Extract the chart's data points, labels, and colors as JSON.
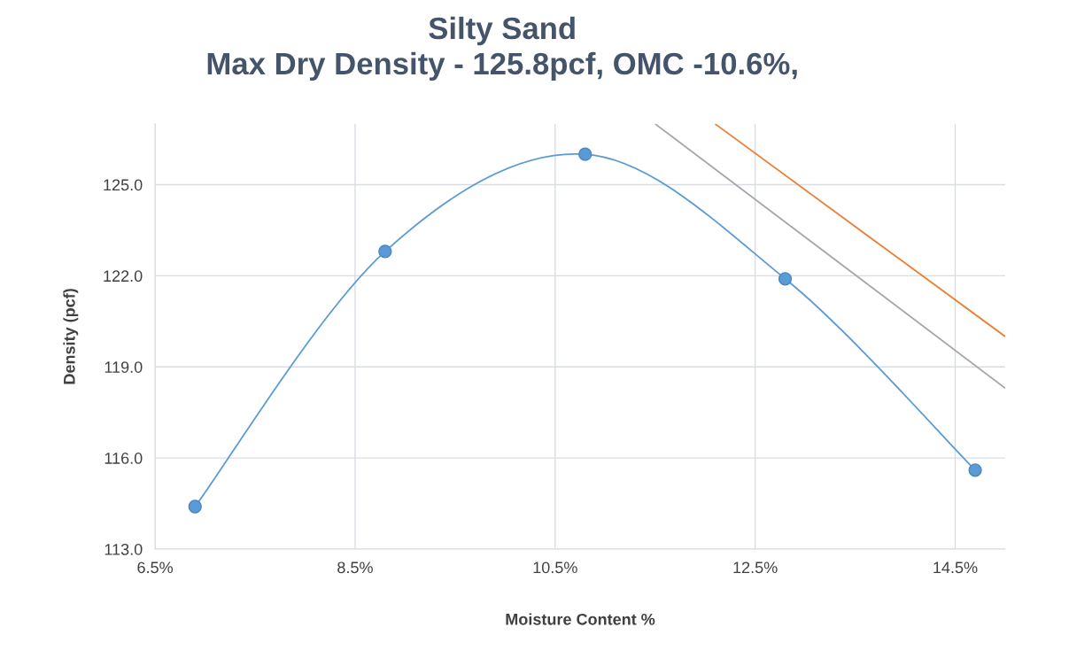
{
  "chart_data": {
    "type": "line",
    "title": "Silty Sand\nMax Dry Density - 125.8pcf, OMC -10.6%,",
    "xlabel": "Moisture Content %",
    "ylabel": "Density (pcf)",
    "xlim": [
      6.5,
      15.0
    ],
    "ylim": [
      113,
      127
    ],
    "xticks": [
      {
        "value": 6.5,
        "label": "6.5%"
      },
      {
        "value": 8.5,
        "label": "8.5%"
      },
      {
        "value": 10.5,
        "label": "10.5%"
      },
      {
        "value": 12.5,
        "label": "12.5%"
      },
      {
        "value": 14.5,
        "label": "14.5%"
      }
    ],
    "yticks": [
      {
        "value": 113,
        "label": "113.0"
      },
      {
        "value": 116,
        "label": "116.0"
      },
      {
        "value": 119,
        "label": "119.0"
      },
      {
        "value": 122,
        "label": "122.0"
      },
      {
        "value": 125,
        "label": "125.0"
      }
    ],
    "grid": true,
    "series": [
      {
        "color": "#5b9bd5",
        "marker": "circle",
        "x": [
          6.9,
          8.8,
          10.8,
          12.8,
          14.7
        ],
        "values": [
          114.4,
          122.8,
          126.0,
          121.9,
          115.6
        ]
      },
      {
        "color": "#a5a5a5",
        "marker": "none",
        "x": [
          11.5,
          15.0
        ],
        "values": [
          127.0,
          118.3
        ]
      },
      {
        "color": "#ed7d31",
        "marker": "none",
        "x": [
          12.1,
          15.0
        ],
        "values": [
          127.0,
          120.0
        ]
      }
    ]
  }
}
